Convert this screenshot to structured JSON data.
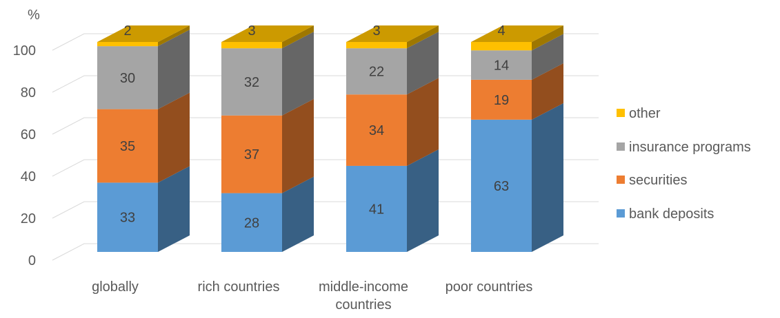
{
  "chart_data": {
    "type": "bar",
    "stacked": true,
    "three_d": true,
    "ylabel": "%",
    "ylim": [
      0,
      100
    ],
    "yticks": [
      0,
      20,
      40,
      60,
      80,
      100
    ],
    "grid": true,
    "legend_position": "right",
    "categories": [
      "globally",
      "rich countries",
      "middle-income countries",
      "poor countries"
    ],
    "category_lines": [
      [
        "globally"
      ],
      [
        "rich countries"
      ],
      [
        "middle-income",
        "countries"
      ],
      [
        "poor countries"
      ]
    ],
    "series": [
      {
        "name": "bank deposits",
        "values": [
          33,
          28,
          41,
          63
        ],
        "color": "#5b9bd5"
      },
      {
        "name": "securities",
        "values": [
          35,
          37,
          34,
          19
        ],
        "color": "#ed7d31"
      },
      {
        "name": "insurance programs",
        "values": [
          30,
          32,
          22,
          14
        ],
        "color": "#a5a5a5"
      },
      {
        "name": "other",
        "values": [
          2,
          3,
          3,
          4
        ],
        "color": "#ffc000"
      }
    ]
  }
}
